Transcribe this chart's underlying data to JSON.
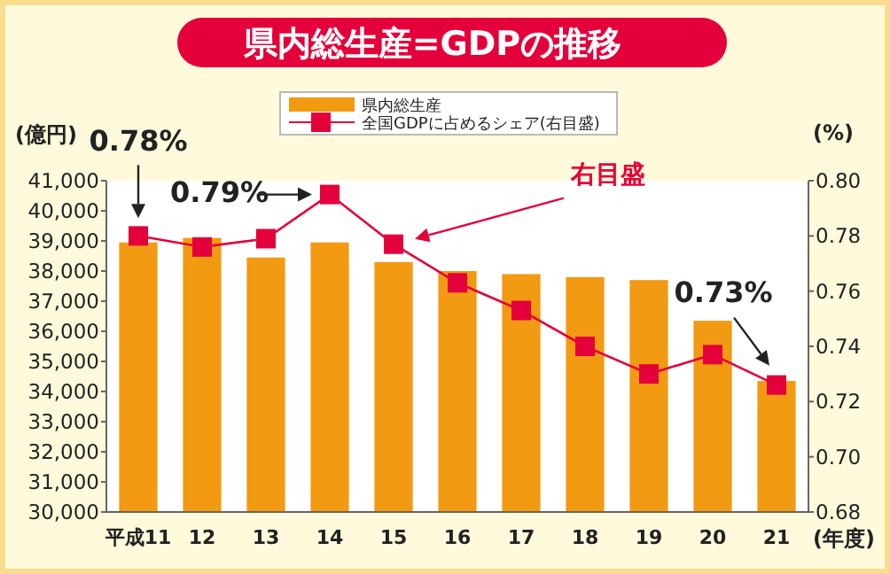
{
  "chart_data": {
    "type": "bar",
    "title": "県内総生産=GDPの推移",
    "xlabel": "(年度)",
    "ylabel": "(億円)",
    "y2label": "(%)",
    "categories": [
      "平成11",
      "12",
      "13",
      "14",
      "15",
      "16",
      "17",
      "18",
      "19",
      "20",
      "21"
    ],
    "series": [
      {
        "name": "県内総生産",
        "color": "#f29a12",
        "values": [
          38950,
          39100,
          38450,
          38950,
          38300,
          38000,
          37900,
          37800,
          37700,
          36350,
          34350
        ]
      },
      {
        "name": "全国GDPに占めるシェア(右目盛)",
        "type": "line",
        "axis": "y2",
        "color": "#e4003a",
        "marker": "square",
        "values": [
          0.78,
          0.776,
          0.779,
          0.795,
          0.777,
          0.763,
          0.753,
          0.74,
          0.73,
          0.737,
          0.726
        ]
      }
    ],
    "ylim": [
      30000,
      41000
    ],
    "yticks": [
      {
        "value": 30000,
        "label": "30,000"
      },
      {
        "value": 31000,
        "label": "31,000"
      },
      {
        "value": 32000,
        "label": "32,000"
      },
      {
        "value": 33000,
        "label": "33,000"
      },
      {
        "value": 34000,
        "label": "34,000"
      },
      {
        "value": 35000,
        "label": "35,000"
      },
      {
        "value": 36000,
        "label": "36,000"
      },
      {
        "value": 37000,
        "label": "37,000"
      },
      {
        "value": 38000,
        "label": "38,000"
      },
      {
        "value": 39000,
        "label": "39,000"
      },
      {
        "value": 40000,
        "label": "40,000"
      },
      {
        "value": 41000,
        "label": "41,000"
      }
    ],
    "y2lim": [
      0.68,
      0.8
    ],
    "y2ticks": [
      {
        "value": 0.68,
        "label": "0.68"
      },
      {
        "value": 0.7,
        "label": "0.70"
      },
      {
        "value": 0.72,
        "label": "0.72"
      },
      {
        "value": 0.74,
        "label": "0.74"
      },
      {
        "value": 0.76,
        "label": "0.76"
      },
      {
        "value": 0.78,
        "label": "0.78"
      },
      {
        "value": 0.8,
        "label": "0.80"
      }
    ],
    "grid": false,
    "legend": "top",
    "annotations": [
      "0.78%",
      "0.79%",
      "0.73%",
      "右目盛"
    ]
  }
}
